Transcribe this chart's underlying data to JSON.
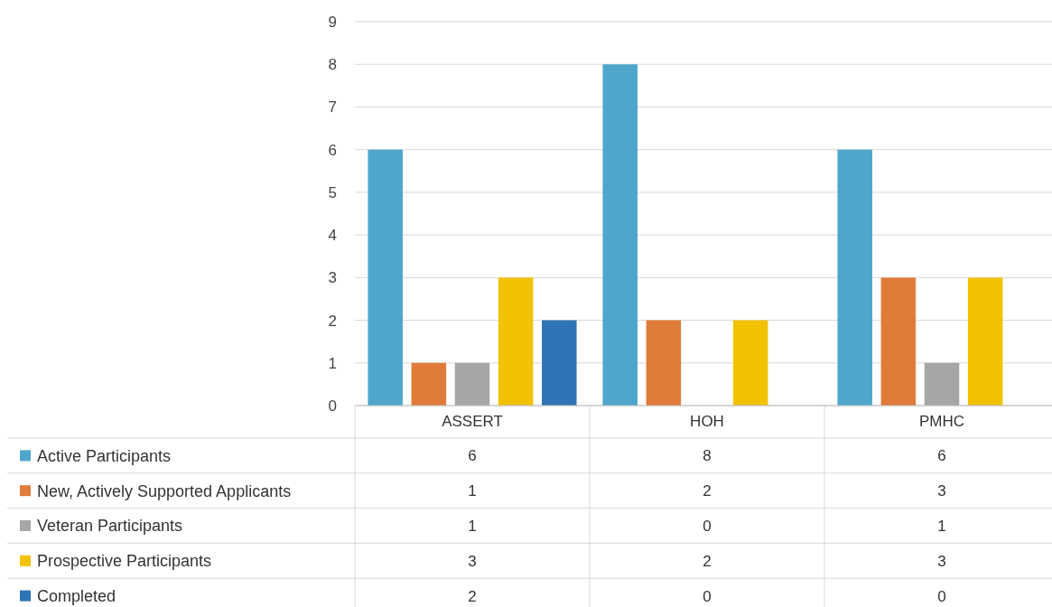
{
  "chart_data": {
    "type": "bar",
    "categories": [
      "ASSERT",
      "HOH",
      "PMHC"
    ],
    "series": [
      {
        "name": "Active Participants",
        "color": "#4fa6cc",
        "values": [
          6,
          8,
          6
        ]
      },
      {
        "name": "New, Actively Supported Applicants",
        "color": "#e07b39",
        "values": [
          1,
          2,
          3
        ]
      },
      {
        "name": "Veteran Participants",
        "color": "#a6a6a6",
        "values": [
          1,
          0,
          1
        ]
      },
      {
        "name": "Prospective Participants",
        "color": "#f2c200",
        "values": [
          3,
          2,
          3
        ]
      },
      {
        "name": "Completed",
        "color": "#2f74b5",
        "values": [
          2,
          0,
          0
        ]
      }
    ],
    "ylim": [
      0,
      9
    ],
    "yticks": [
      0,
      1,
      2,
      3,
      4,
      5,
      6,
      7,
      8,
      9
    ],
    "grid": "y",
    "data_labels": true,
    "legend": "bottom"
  }
}
